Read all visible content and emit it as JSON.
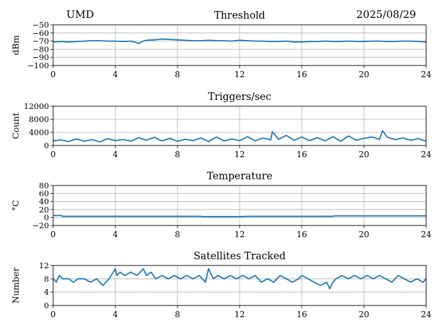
{
  "header": {
    "station": "UMD",
    "date": "2025/08/29"
  },
  "chart_data": [
    {
      "type": "line",
      "title": "Threshold",
      "xlabel": "",
      "ylabel": "dBm",
      "xlim": [
        0,
        24
      ],
      "ylim": [
        -100,
        -50
      ],
      "x_ticks": [
        "0",
        "4",
        "8",
        "12",
        "16",
        "20",
        "24"
      ],
      "y_ticks": [
        "−100",
        "−90",
        "−80",
        "−70",
        "−60",
        "−50"
      ],
      "y_tick_values": [
        -100,
        -90,
        -80,
        -70,
        -60,
        -50
      ],
      "grid": true,
      "color": "#1f77b4",
      "series": [
        {
          "x": [
            0,
            0.5,
            1,
            1.5,
            2,
            2.5,
            3,
            3.5,
            4,
            4.5,
            5,
            5.2,
            5.5,
            5.8,
            6,
            6.5,
            7,
            7.5,
            8,
            8.5,
            9,
            9.5,
            10,
            10.5,
            11,
            11.5,
            12,
            12.5,
            13,
            13.5,
            14,
            14.5,
            15,
            15.5,
            16,
            16.5,
            17,
            17.5,
            18,
            18.5,
            19,
            19.5,
            20,
            20.5,
            21,
            21.5,
            22,
            22.5,
            23,
            23.5,
            24
          ],
          "y": [
            -71,
            -70.5,
            -71,
            -70.5,
            -70,
            -69.5,
            -69.5,
            -70,
            -70,
            -70.5,
            -70,
            -71,
            -73,
            -70,
            -69,
            -68.5,
            -67.5,
            -68,
            -68.5,
            -69,
            -69.5,
            -69.5,
            -69,
            -69.5,
            -69.5,
            -70,
            -69,
            -69.5,
            -70,
            -70,
            -70.5,
            -70.5,
            -70,
            -71,
            -71,
            -70.5,
            -70.5,
            -70,
            -70.5,
            -70.5,
            -70,
            -70.5,
            -70.5,
            -70,
            -70,
            -70.5,
            -70.5,
            -70,
            -70,
            -70.5,
            -71
          ]
        }
      ]
    },
    {
      "type": "line",
      "title": "Triggers/sec",
      "xlabel": "",
      "ylabel": "Count",
      "xlim": [
        0,
        24
      ],
      "ylim": [
        0,
        12000
      ],
      "x_ticks": [
        "0",
        "4",
        "8",
        "12",
        "16",
        "20",
        "24"
      ],
      "y_ticks": [
        "0",
        "4000",
        "8000",
        "12000"
      ],
      "y_tick_values": [
        0,
        4000,
        8000,
        12000
      ],
      "grid": true,
      "color": "#1f77b4",
      "series": [
        {
          "x": [
            0,
            0.5,
            1,
            1.5,
            2,
            2.5,
            3,
            3.5,
            4,
            4.5,
            5,
            5.5,
            6,
            6.5,
            7,
            7.5,
            8,
            8.5,
            9,
            9.5,
            10,
            10.5,
            11,
            11.5,
            12,
            12.5,
            13,
            13.5,
            14,
            14.1,
            14.5,
            15,
            15.5,
            16,
            16.5,
            17,
            17.5,
            18,
            18.5,
            19,
            19.5,
            20,
            20.5,
            21,
            21.2,
            21.5,
            22,
            22.5,
            23,
            23.5,
            24
          ],
          "y": [
            1400,
            1700,
            1200,
            2000,
            1300,
            1800,
            1100,
            2100,
            1500,
            1800,
            1300,
            2400,
            1600,
            2500,
            1400,
            2200,
            1300,
            1900,
            1500,
            2300,
            1200,
            2600,
            1400,
            2000,
            1500,
            2700,
            1400,
            2300,
            1700,
            4200,
            1900,
            3100,
            1600,
            2600,
            1500,
            2400,
            1400,
            2700,
            1300,
            2900,
            1600,
            2200,
            2600,
            1900,
            4500,
            2500,
            1800,
            2300,
            1600,
            2100,
            1300
          ]
        }
      ]
    },
    {
      "type": "line",
      "title": "Temperature",
      "xlabel": "",
      "ylabel": "°C",
      "xlim": [
        0,
        24
      ],
      "ylim": [
        -20,
        80
      ],
      "x_ticks": [
        "0",
        "4",
        "8",
        "12",
        "16",
        "20",
        "24"
      ],
      "y_ticks": [
        "−20",
        "0",
        "20",
        "40",
        "60",
        "80"
      ],
      "y_tick_values": [
        -20,
        0,
        20,
        40,
        60,
        80
      ],
      "grid": true,
      "color": "#1f77b4",
      "series": [
        {
          "x": [
            0,
            0.5,
            0.6,
            4,
            8,
            9.5,
            9.7,
            12,
            12.5,
            16,
            18,
            18.1,
            20,
            24
          ],
          "y": [
            5,
            5,
            3,
            3,
            3,
            3,
            2,
            2,
            3,
            3,
            3,
            4,
            4,
            4
          ]
        }
      ]
    },
    {
      "type": "line",
      "title": "Satellites Tracked",
      "xlabel": "",
      "ylabel": "Number",
      "xlim": [
        0,
        24
      ],
      "ylim": [
        0,
        12
      ],
      "x_ticks": [
        "0",
        "4",
        "8",
        "12",
        "16",
        "20",
        "24"
      ],
      "y_ticks": [
        "0",
        "4",
        "8",
        "12"
      ],
      "y_tick_values": [
        0,
        4,
        8,
        12
      ],
      "grid": true,
      "color": "#1f77b4",
      "series": [
        {
          "x": [
            0,
            0.2,
            0.4,
            0.6,
            1,
            1.3,
            1.6,
            2,
            2.4,
            2.8,
            3.2,
            3.6,
            4,
            4.1,
            4.3,
            4.6,
            5,
            5.4,
            5.8,
            6,
            6.3,
            6.6,
            7,
            7.4,
            7.8,
            8.2,
            8.6,
            9,
            9.4,
            9.8,
            10,
            10.3,
            10.6,
            11,
            11.4,
            11.8,
            12.2,
            12.6,
            13,
            13.4,
            13.8,
            14.2,
            14.6,
            15,
            15.4,
            15.8,
            16,
            16.4,
            16.8,
            17.2,
            17.6,
            17.8,
            18,
            18.2,
            18.6,
            19,
            19.4,
            19.8,
            20.2,
            20.6,
            21,
            21.4,
            21.8,
            22.2,
            22.6,
            23,
            23.4,
            23.8,
            24
          ],
          "y": [
            8,
            7,
            9,
            8,
            8,
            7,
            8,
            8,
            7,
            8,
            6,
            8,
            11,
            9,
            10,
            9,
            10,
            9,
            11,
            9,
            10,
            8,
            9,
            8,
            9,
            8,
            9,
            8,
            9,
            7,
            11,
            8,
            9,
            8,
            9,
            8,
            9,
            8,
            9,
            7,
            8,
            7,
            9,
            8,
            7,
            8,
            9,
            8,
            7,
            6,
            7,
            5,
            7,
            8,
            9,
            8,
            9,
            8,
            9,
            8,
            9,
            8,
            7,
            9,
            8,
            7,
            8,
            7,
            8
          ]
        }
      ]
    }
  ]
}
